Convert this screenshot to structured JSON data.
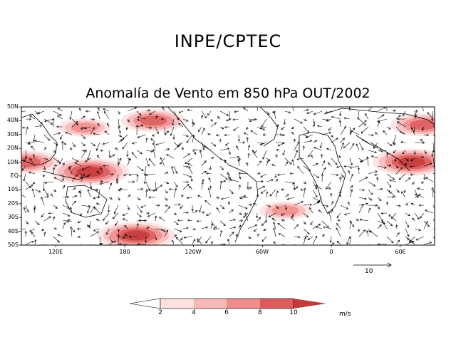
{
  "header": "INPE/CPTEC",
  "title": "Anomalía de Vento em 850 hPa OUT/2002",
  "lat_labels": [
    "50N",
    "40N",
    "30N",
    "20N",
    "10N",
    "EQ",
    "10S",
    "20S",
    "30S",
    "40S",
    "50S"
  ],
  "lon_labels": [
    "120E",
    "180",
    "120W",
    "60W",
    "0",
    "60E"
  ],
  "reference_vector": {
    "label": "10",
    "magnitude_ms": 10
  },
  "colorbar": {
    "ticks": [
      "2",
      "4",
      "6",
      "8",
      "10"
    ],
    "units": "m/s",
    "colors": [
      "#ffffff",
      "#fde0e0",
      "#f9b8b8",
      "#ef8c8c",
      "#dc5c5c",
      "#c43a3a"
    ]
  },
  "map_region": {
    "lat_range": [
      -50,
      50
    ],
    "lon_range": [
      90,
      450
    ]
  },
  "anomaly_maxima": [
    {
      "lat": 40,
      "lon": 205,
      "speed": 8
    },
    {
      "lat": 37,
      "lon": 440,
      "speed": 7
    },
    {
      "lat": 10,
      "lon": 430,
      "speed": 10
    },
    {
      "lat": 3,
      "lon": 150,
      "speed": 10
    },
    {
      "lat": -43,
      "lon": 190,
      "speed": 10
    },
    {
      "lat": 10,
      "lon": 95,
      "speed": 8
    },
    {
      "lat": 35,
      "lon": 145,
      "speed": 6
    },
    {
      "lat": -25,
      "lon": 320,
      "speed": 6
    }
  ]
}
